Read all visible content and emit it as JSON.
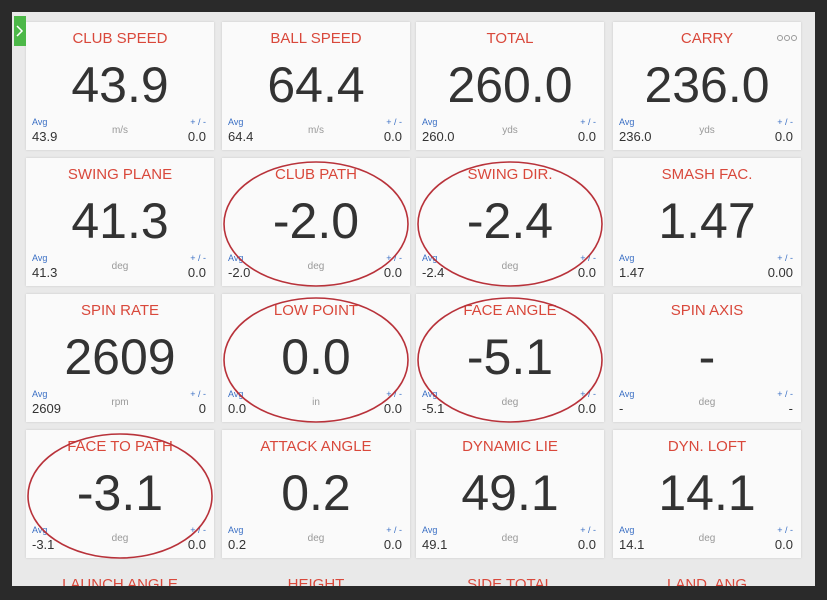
{
  "avg_label": "Avg",
  "pm_label": "+ / -",
  "tiles": [
    {
      "label": "CLUB SPEED",
      "value": "43.9",
      "avg": "43.9",
      "unit": "m/s",
      "pm": "0.0"
    },
    {
      "label": "BALL SPEED",
      "value": "64.4",
      "avg": "64.4",
      "unit": "m/s",
      "pm": "0.0"
    },
    {
      "label": "TOTAL",
      "value": "260.0",
      "avg": "260.0",
      "unit": "yds",
      "pm": "0.0"
    },
    {
      "label": "CARRY",
      "value": "236.0",
      "avg": "236.0",
      "unit": "yds",
      "pm": "0.0"
    },
    {
      "label": "SWING PLANE",
      "value": "41.3",
      "avg": "41.3",
      "unit": "deg",
      "pm": "0.0"
    },
    {
      "label": "CLUB PATH",
      "value": "-2.0",
      "avg": "-2.0",
      "unit": "deg",
      "pm": "0.0"
    },
    {
      "label": "SWING DIR.",
      "value": "-2.4",
      "avg": "-2.4",
      "unit": "deg",
      "pm": "0.0"
    },
    {
      "label": "SMASH FAC.",
      "value": "1.47",
      "avg": "1.47",
      "pm": "0.00"
    },
    {
      "label": "SPIN RATE",
      "value": "2609",
      "avg": "2609",
      "unit": "rpm",
      "pm": "0"
    },
    {
      "label": "LOW POINT",
      "value": "0.0",
      "avg": "0.0",
      "unit": "in",
      "pm": "0.0"
    },
    {
      "label": "FACE ANGLE",
      "value": "-5.1",
      "avg": "-5.1",
      "unit": "deg",
      "pm": "0.0"
    },
    {
      "label": "SPIN AXIS",
      "value": "-",
      "avg": "-",
      "unit": "deg",
      "pm": "-"
    },
    {
      "label": "FACE TO PATH",
      "value": "-3.1",
      "avg": "-3.1",
      "unit": "deg",
      "pm": "0.0"
    },
    {
      "label": "ATTACK ANGLE",
      "value": "0.2",
      "avg": "0.2",
      "unit": "deg",
      "pm": "0.0"
    },
    {
      "label": "DYNAMIC LIE",
      "value": "49.1",
      "avg": "49.1",
      "unit": "deg",
      "pm": "0.0"
    },
    {
      "label": "DYN. LOFT",
      "value": "14.1",
      "avg": "14.1",
      "unit": "deg",
      "pm": "0.0"
    }
  ],
  "partial_labels": [
    "LAUNCH ANGLE",
    "HEIGHT",
    "SIDE TOTAL",
    "LAND. ANG"
  ]
}
